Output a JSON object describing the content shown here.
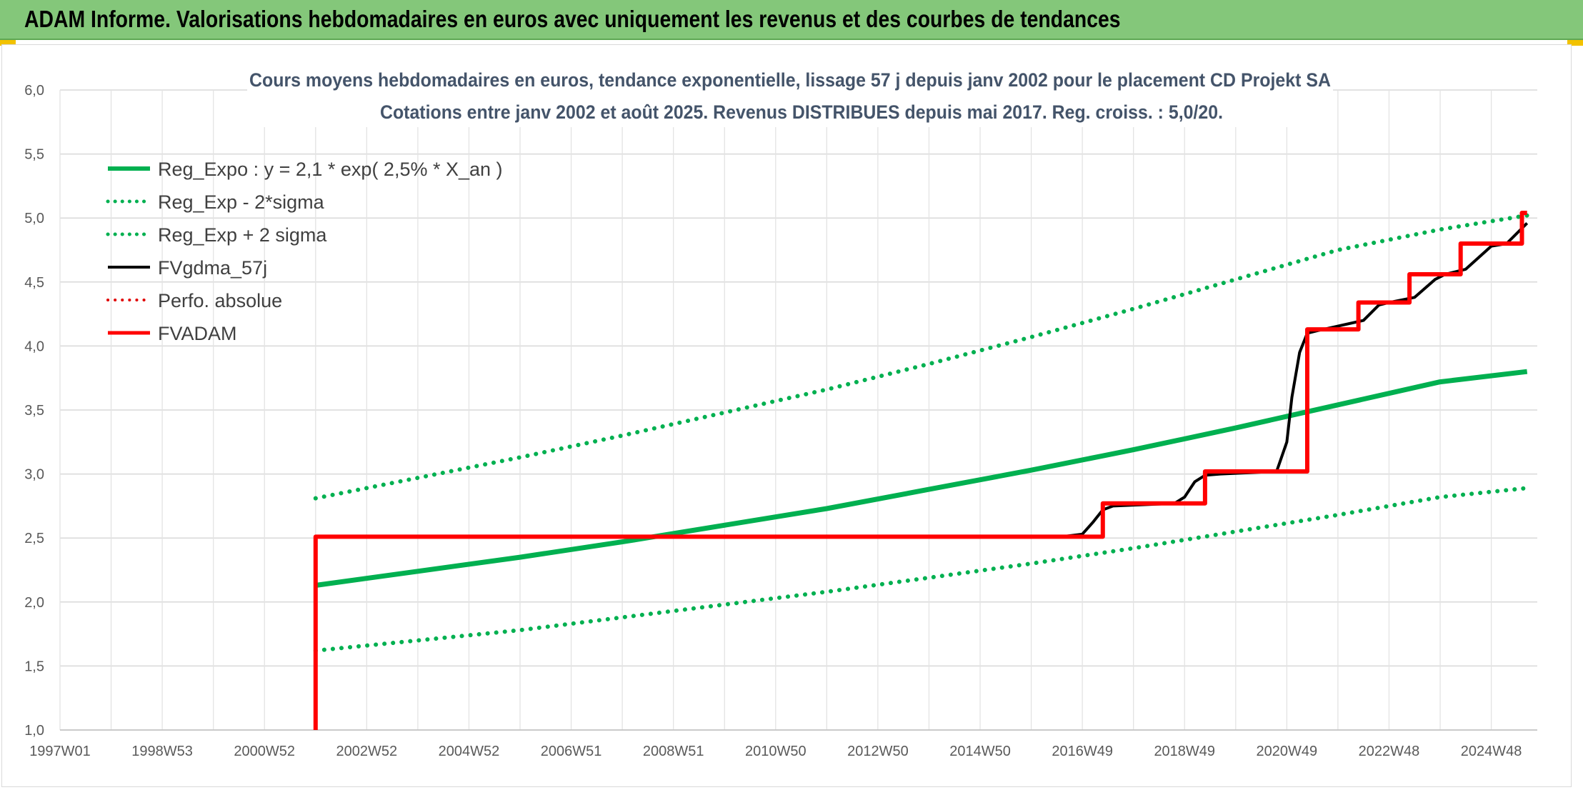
{
  "banner": {
    "title": "ADAM Informe. Valorisations hebdomadaires en euros avec uniquement les revenus et des courbes de tendances",
    "color": "#84c77a"
  },
  "chart_data": {
    "type": "line",
    "title": "Cours moyens hebdomadaires en euros, tendance exponentielle, lissage 57 j depuis janv 2002 pour le placement CD Projekt SA",
    "subtitle": "Cotations entre janv 2002 et août 2025. Revenus DISTRIBUES depuis mai 2017. Reg. croiss. : 5,0/20.",
    "x_range": [
      1997.0,
      2025.9
    ],
    "x_ticks": [
      {
        "label": "1997W01",
        "x": 1997.0
      },
      {
        "label": "1998W53",
        "x": 1999.0
      },
      {
        "label": "2000W52",
        "x": 2001.0
      },
      {
        "label": "2002W52",
        "x": 2003.0
      },
      {
        "label": "2004W52",
        "x": 2005.0
      },
      {
        "label": "2006W51",
        "x": 2007.0
      },
      {
        "label": "2008W51",
        "x": 2009.0
      },
      {
        "label": "2010W50",
        "x": 2011.0
      },
      {
        "label": "2012W50",
        "x": 2013.0
      },
      {
        "label": "2014W50",
        "x": 2015.0
      },
      {
        "label": "2016W49",
        "x": 2017.0
      },
      {
        "label": "2018W49",
        "x": 2019.0
      },
      {
        "label": "2020W49",
        "x": 2021.0
      },
      {
        "label": "2022W48",
        "x": 2023.0
      },
      {
        "label": "2024W48",
        "x": 2025.0
      }
    ],
    "ylim": [
      1.0,
      6.0
    ],
    "y_ticks": [
      "1,0",
      "1,5",
      "2,0",
      "2,5",
      "3,0",
      "3,5",
      "4,0",
      "4,5",
      "5,0",
      "5,5",
      "6,0"
    ],
    "grid": true,
    "legend_position": "top-left",
    "series": [
      {
        "name": "Reg_Expo : y = 2,1 * exp( 2,5% *  X_an )",
        "color": "#00b050",
        "style": "solid",
        "width": 7,
        "x": [
          2002.0,
          2004.0,
          2006.0,
          2008.0,
          2010.0,
          2012.0,
          2014.0,
          2016.0,
          2018.0,
          2020.0,
          2022.0,
          2024.0,
          2025.7
        ],
        "y": [
          2.13,
          2.24,
          2.35,
          2.47,
          2.6,
          2.73,
          2.88,
          3.03,
          3.19,
          3.36,
          3.54,
          3.72,
          3.8
        ]
      },
      {
        "name": "Reg_Exp - 2*sigma",
        "color": "#00b050",
        "style": "dotted",
        "width": 6,
        "x": [
          2002.0,
          2004.0,
          2006.0,
          2008.0,
          2010.0,
          2012.0,
          2014.0,
          2016.0,
          2018.0,
          2020.0,
          2022.0,
          2024.0,
          2025.7
        ],
        "y": [
          1.62,
          1.7,
          1.78,
          1.88,
          1.98,
          2.08,
          2.19,
          2.3,
          2.42,
          2.55,
          2.68,
          2.82,
          2.89
        ]
      },
      {
        "name": "Reg_Exp + 2 sigma",
        "color": "#00b050",
        "style": "dotted",
        "width": 6,
        "x": [
          2002.0,
          2004.0,
          2006.0,
          2008.0,
          2010.0,
          2012.0,
          2014.0,
          2016.0,
          2018.0,
          2020.0,
          2022.0,
          2024.0,
          2025.7
        ],
        "y": [
          2.81,
          2.97,
          3.13,
          3.3,
          3.48,
          3.66,
          3.86,
          4.07,
          4.29,
          4.52,
          4.75,
          4.91,
          5.02
        ]
      },
      {
        "name": "FVgdma_57j",
        "color": "#000000",
        "style": "solid",
        "width": 4,
        "x": [
          2002.0,
          2016.6,
          2017.0,
          2017.2,
          2017.4,
          2017.6,
          2018.8,
          2019.0,
          2019.2,
          2019.4,
          2019.7,
          2020.8,
          2021.0,
          2021.1,
          2021.25,
          2021.4,
          2021.6,
          2022.5,
          2022.8,
          2023.0,
          2023.5,
          2023.9,
          2024.1,
          2024.5,
          2025.0,
          2025.3,
          2025.5,
          2025.7
        ],
        "y": [
          2.51,
          2.51,
          2.53,
          2.62,
          2.72,
          2.75,
          2.77,
          2.82,
          2.94,
          2.99,
          3.0,
          3.02,
          3.25,
          3.6,
          3.95,
          4.1,
          4.12,
          4.2,
          4.32,
          4.34,
          4.38,
          4.52,
          4.56,
          4.6,
          4.78,
          4.8,
          4.88,
          4.96
        ]
      },
      {
        "name": "Perfo. absolue",
        "color": "#e00000",
        "style": "dotted",
        "width": 4,
        "x": [],
        "y": []
      },
      {
        "name": "FVADAM",
        "color": "#ff0000",
        "style": "solid",
        "width": 6,
        "x": [
          2002.0,
          2002.0,
          2002.0,
          2017.4,
          2017.4,
          2019.4,
          2019.4,
          2021.4,
          2021.4,
          2022.4,
          2022.4,
          2023.4,
          2023.4,
          2024.4,
          2024.4,
          2025.6,
          2025.6,
          2025.7
        ],
        "y": [
          1.0,
          2.51,
          2.51,
          2.51,
          2.77,
          2.77,
          3.02,
          3.02,
          4.13,
          4.13,
          4.34,
          4.34,
          4.56,
          4.56,
          4.8,
          4.8,
          5.04,
          5.04
        ]
      }
    ]
  }
}
